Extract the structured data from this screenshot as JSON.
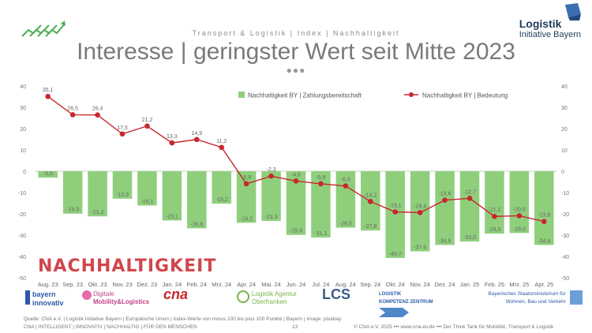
{
  "header": {
    "subtitle": "Transport & Logistik | Index | Nachhaltigkeit",
    "title": "Interesse | geringster Wert seit Mitte 2023",
    "dots": "●●●",
    "brand_line1": "Logistik",
    "brand_line2": "Initiative Bayern"
  },
  "stamp_text": "NACHHALTIGKEIT",
  "chart_data": {
    "type": "bar+line",
    "categories": [
      "Aug. 23",
      "Sep. 23",
      "Okt. 23",
      "Nov. 23",
      "Dez. 23",
      "Jan. 24",
      "Feb. 24",
      "Mrz. 24",
      "Apr. 24",
      "Mai. 24",
      "Jun. 24",
      "Jul. 24",
      "Aug. 24",
      "Sep. 24",
      "Okt. 24",
      "Nov. 24",
      "Dez. 24",
      "Jan. 25",
      "Feb. 25",
      "Mrz. 25",
      "Apr. 25"
    ],
    "series": [
      {
        "name": "Nachhaltigkeit BY | Zahlungsbereitschaft",
        "type": "bar",
        "color": "#8fcf7c",
        "values": [
          -3.0,
          -19.9,
          -21.2,
          -12.9,
          -16.1,
          -23.1,
          -26.8,
          -15.2,
          -24.2,
          -23.3,
          -29.9,
          -31.1,
          -26.5,
          -27.8,
          -40.7,
          -37.6,
          -34.6,
          -33.0,
          -29.3,
          -29.0,
          -34.6
        ],
        "labels": [
          "-3,0",
          "-19,9",
          "-21,2",
          "-12,9",
          "-16,1",
          "-23,1",
          "-26,8",
          "-15,2",
          "-24,2",
          "-23,3",
          "-29,9",
          "-31,1",
          "-26,5",
          "-27,8",
          "-40,7",
          "-37,6",
          "-34,6",
          "-33,0",
          "-29,3",
          "-29,0",
          "-34,6"
        ]
      },
      {
        "name": "Nachhaltigkeit BY | Bedeutung",
        "type": "line",
        "color": "#c8272e",
        "values": [
          35.1,
          26.5,
          26.4,
          17.5,
          21.2,
          13.3,
          14.9,
          11.2,
          -5.9,
          -2.3,
          -4.6,
          -5.9,
          -6.9,
          -14.2,
          -19.1,
          -19.4,
          -13.6,
          -12.7,
          -21.2,
          -20.9,
          -23.6
        ],
        "labels": [
          "35,1",
          "26,5",
          "26,4",
          "17,5",
          "21,2",
          "13,3",
          "14,9",
          "11,2",
          "-5,9",
          "-2,3",
          "-4,6",
          "-5,9",
          "-6,9",
          "-14,2",
          "-19,1",
          "-19,4",
          "-13,6",
          "-12,7",
          "-21,2",
          "-20,9",
          "-23,6"
        ]
      }
    ],
    "ylim": [
      -50,
      40
    ],
    "yticks": [
      40,
      30,
      20,
      10,
      0,
      -10,
      -20,
      -30,
      -40,
      -50
    ],
    "legend_position": "top-right",
    "grid": false
  },
  "logos": [
    {
      "name": "bayern innovativ",
      "line1": "bayern",
      "line2": "innovativ",
      "color": "#2a5aa8"
    },
    {
      "name": "Digitale Mobility & Logistics",
      "line1": "Digitale",
      "line2": "Mobility&Logistics",
      "color": "#c0428a"
    },
    {
      "name": "CNA",
      "line1": "cna",
      "line2": "",
      "color": "#c8272e"
    },
    {
      "name": "Logistik Agentur Oberfranken",
      "line1": "Logistik Agentur",
      "line2": "Oberfranken",
      "color": "#7bb34a"
    },
    {
      "name": "LCS",
      "line1": "LCS",
      "line2": "",
      "color": "#3b5b8a"
    },
    {
      "name": "Logistik Kompetenz Zentrum",
      "line1": "LOGISTIK",
      "line2": "KOMPETENZ ZENTRUM",
      "color": "#2a5aa8"
    },
    {
      "name": "Bayerisches Staatsministerium",
      "line1": "Bayerisches Staatsministerium für",
      "line2": "Wohnen, Bau und Verkehr",
      "color": "#2a5aa8"
    }
  ],
  "footer": {
    "source": "Quelle: CNA e.V. | Logistik Initiative Bayern | Europäische Union | Index-Werte von minus 100 bis plus 100 Punkte | Bayern | image: pixabay",
    "left": "CNA | INTELLIGENT | INNOVATIV | NACHHALTIG | FÜR DEN MENSCHEN",
    "page": "13",
    "right": "© CNA e.V. 2025 ••• www.cna-ev.de ••• Der Think Tank für Mobilität, Transport & Logistik"
  }
}
